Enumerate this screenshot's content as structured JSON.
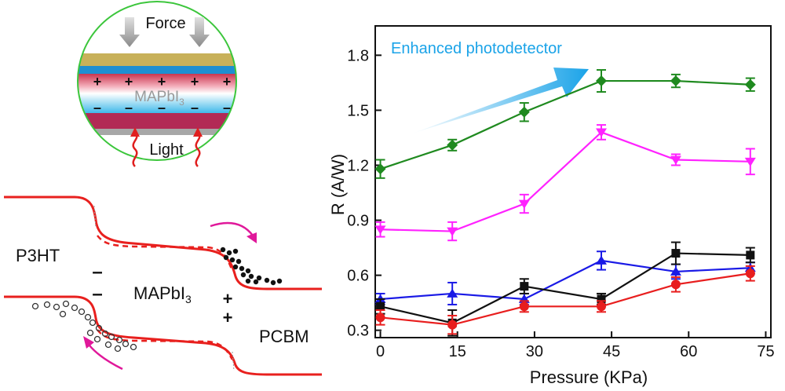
{
  "schematic": {
    "force_label": "Force",
    "light_label": "Light",
    "layer_label": "MAPbI",
    "layer_label_sub": "3",
    "plus_sign": "+",
    "minus_sign": "–"
  },
  "band_diagram": {
    "p3ht_label": "P3HT",
    "mapbi_label": "MAPbI",
    "mapbi_label_sub": "3",
    "pcbm_label": "PCBM",
    "minus_sign": "–",
    "plus_sign": "+",
    "curve_color": "#e8201e",
    "arrow_color": "#e0189a"
  },
  "chart_data": {
    "type": "line",
    "title": "",
    "xlabel": "Pressure (KPa)",
    "ylabel": "R (A/W)",
    "xlim": [
      -1,
      76
    ],
    "ylim": [
      0.26,
      1.96
    ],
    "xticks": [
      0,
      15,
      30,
      45,
      60,
      75
    ],
    "yticks": [
      0.3,
      0.6,
      0.9,
      1.2,
      1.5,
      1.8
    ],
    "ytick_labels": [
      "0.3",
      "0.6",
      "0.9",
      "1.2",
      "1.5",
      "1.8"
    ],
    "x": [
      0,
      14,
      28,
      43,
      57.5,
      72
    ],
    "annotation": "Enhanced photodetector",
    "annotation_color": "#1aa3e8",
    "series": [
      {
        "marker": "diamond",
        "color": "#1f8a1f",
        "values": [
          1.18,
          1.31,
          1.49,
          1.66,
          1.66,
          1.64
        ],
        "errors": [
          0.05,
          0.03,
          0.05,
          0.06,
          0.035,
          0.035
        ]
      },
      {
        "marker": "triangle-down",
        "color": "#ff22ff",
        "values": [
          0.85,
          0.84,
          0.99,
          1.38,
          1.23,
          1.22
        ],
        "errors": [
          0.04,
          0.05,
          0.05,
          0.04,
          0.03,
          0.07
        ]
      },
      {
        "marker": "triangle-up",
        "color": "#1a1ae6",
        "values": [
          0.47,
          0.5,
          0.47,
          0.68,
          0.62,
          0.64
        ],
        "errors": [
          0.03,
          0.06,
          0.03,
          0.05,
          0.04,
          0.03
        ]
      },
      {
        "marker": "square",
        "color": "#111111",
        "values": [
          0.43,
          0.34,
          0.54,
          0.47,
          0.72,
          0.71
        ],
        "errors": [
          0.04,
          0.07,
          0.04,
          0.03,
          0.06,
          0.04
        ]
      },
      {
        "marker": "circle",
        "color": "#e81e1e",
        "values": [
          0.37,
          0.33,
          0.43,
          0.43,
          0.55,
          0.61
        ],
        "errors": [
          0.04,
          0.05,
          0.03,
          0.03,
          0.04,
          0.04
        ]
      }
    ]
  }
}
